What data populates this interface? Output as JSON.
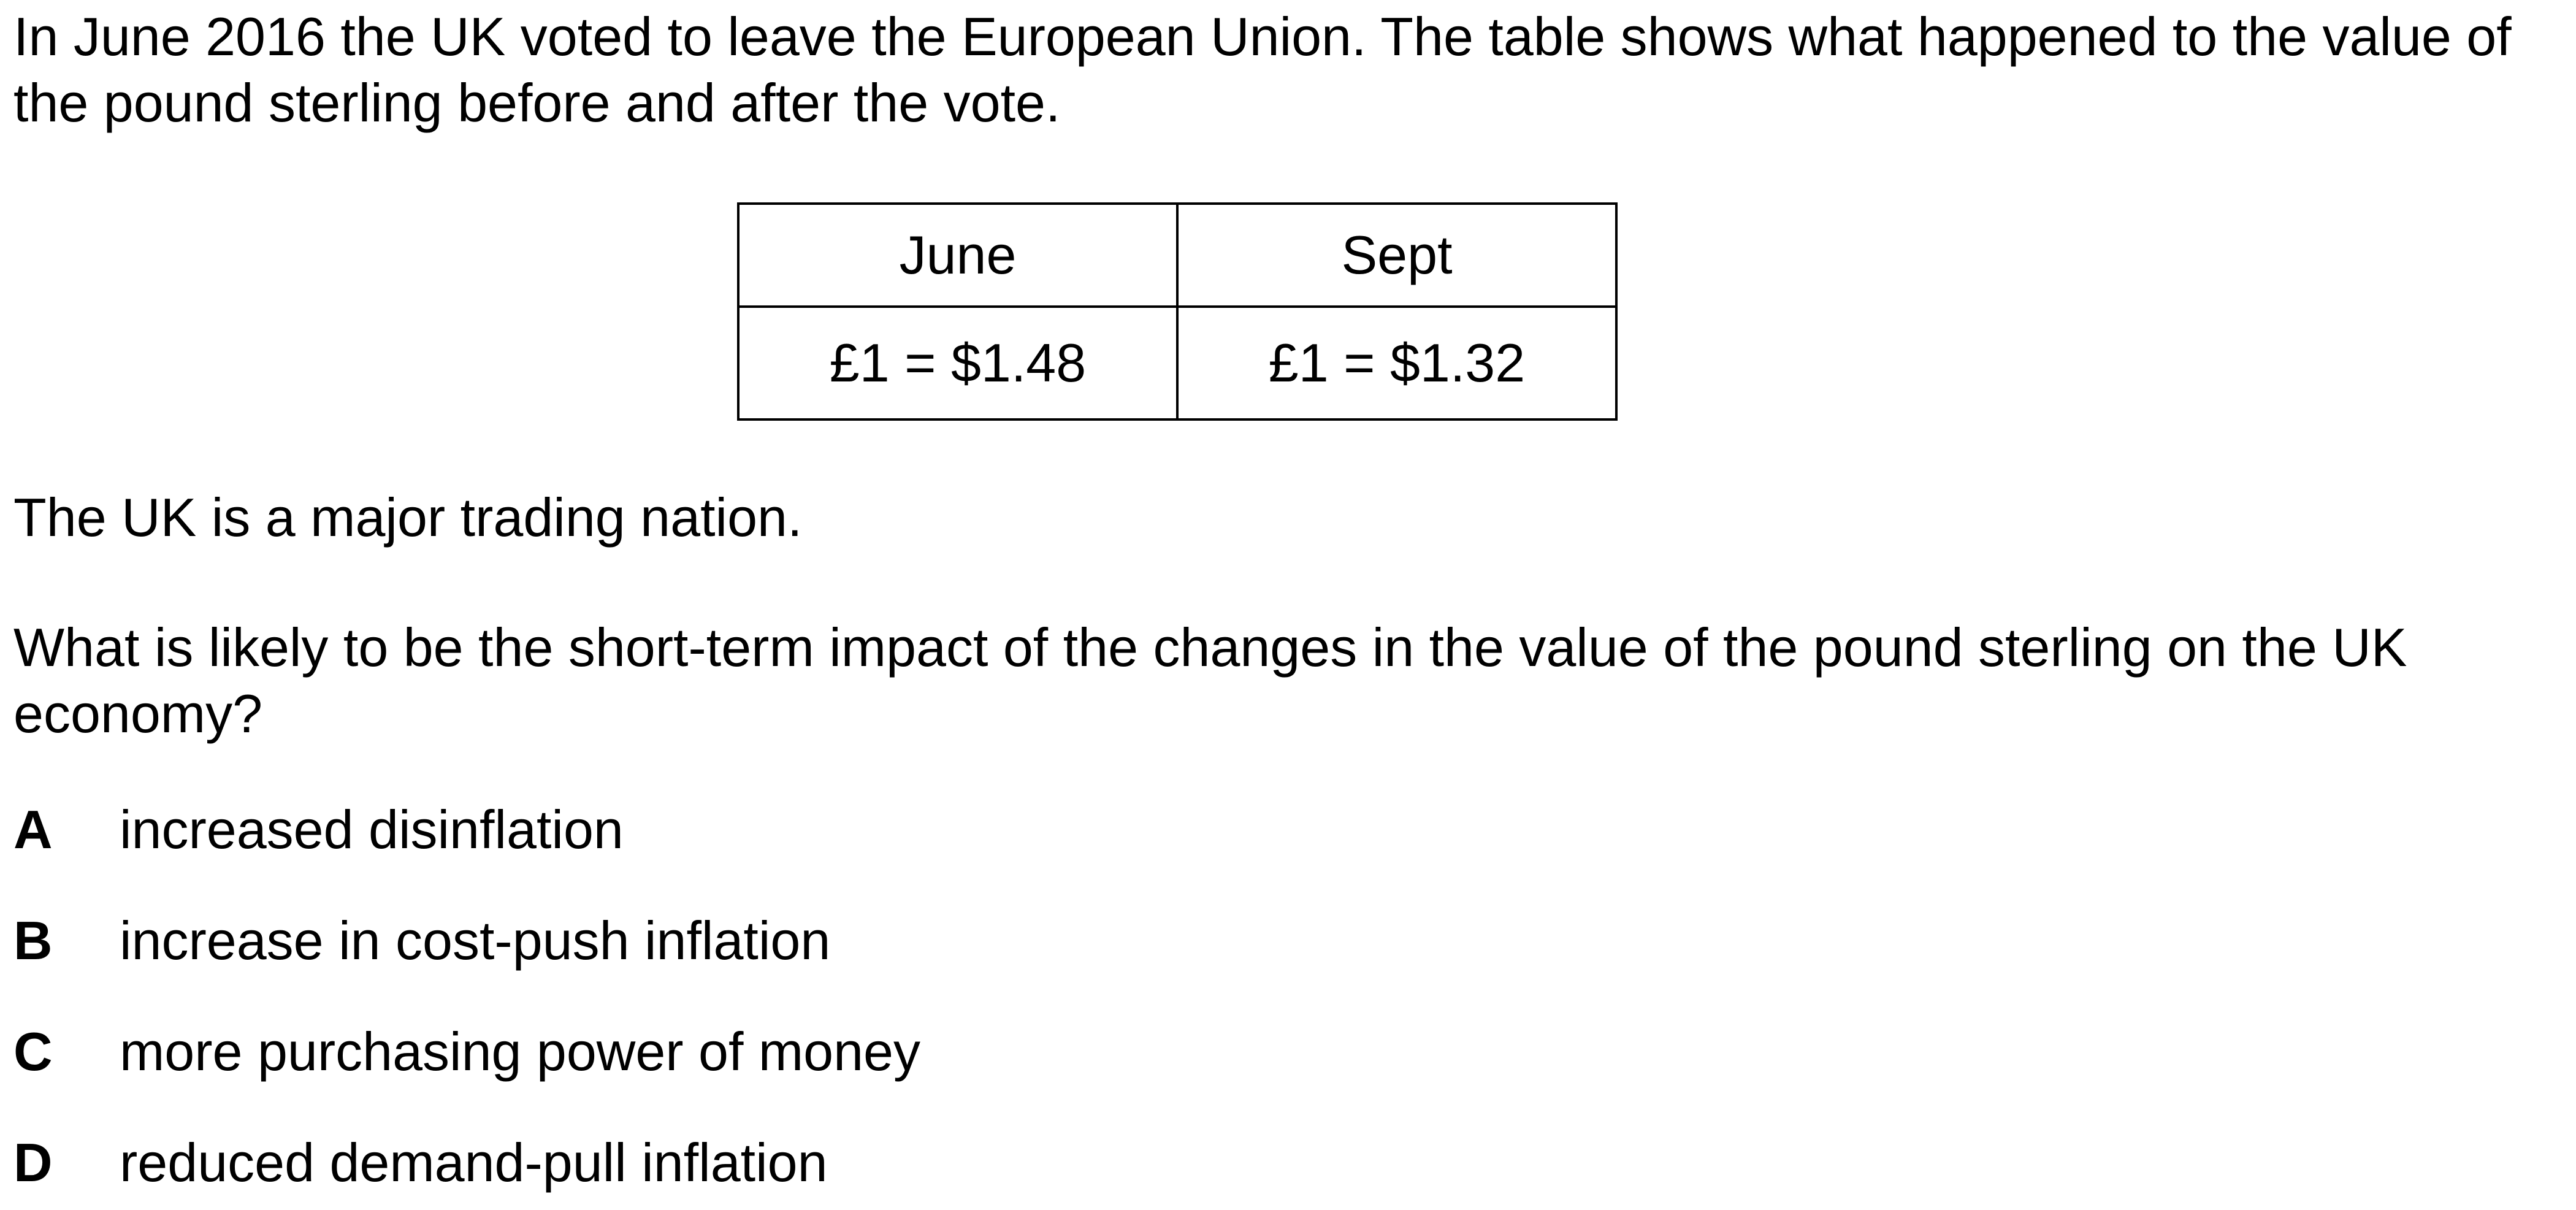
{
  "intro": "In June 2016 the UK voted to leave the European Union. The table shows what happened to the value of the pound sterling before and after the vote.",
  "table": {
    "headers": [
      "June",
      "Sept"
    ],
    "values": [
      "£1 = $1.48",
      "£1 = $1.32"
    ]
  },
  "statement": "The UK is a major trading nation.",
  "question": "What is likely to be the short-term impact of the changes in the value of the pound sterling on the UK economy?",
  "options": [
    {
      "letter": "A",
      "text": "increased disinflation"
    },
    {
      "letter": "B",
      "text": "increase in cost-push inflation"
    },
    {
      "letter": "C",
      "text": "more purchasing power of money"
    },
    {
      "letter": "D",
      "text": "reduced demand-pull inflation"
    }
  ]
}
